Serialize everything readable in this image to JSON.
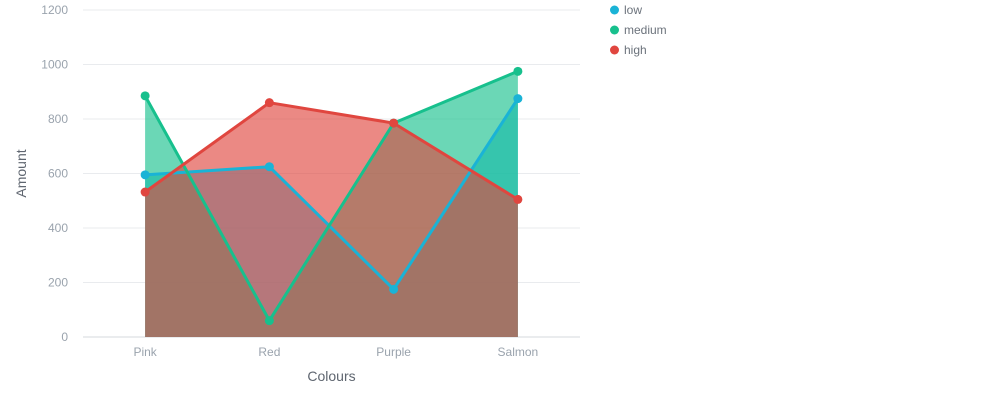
{
  "chart_data": {
    "type": "area",
    "title": "",
    "xlabel": "Colours",
    "ylabel": "Amount",
    "categories": [
      "Pink",
      "Red",
      "Purple",
      "Salmon"
    ],
    "ylim": [
      0,
      1200
    ],
    "yticks": [
      0,
      200,
      400,
      600,
      800,
      1000,
      1200
    ],
    "grid": true,
    "legend_position": "top-right",
    "series": [
      {
        "name": "low",
        "color": "#1ab3d6",
        "values": [
          595,
          625,
          175,
          875
        ]
      },
      {
        "name": "medium",
        "color": "#17c08d",
        "values": [
          885,
          60,
          785,
          975
        ]
      },
      {
        "name": "high",
        "color": "#e0463f",
        "values": [
          532,
          860,
          785,
          505
        ]
      }
    ]
  }
}
